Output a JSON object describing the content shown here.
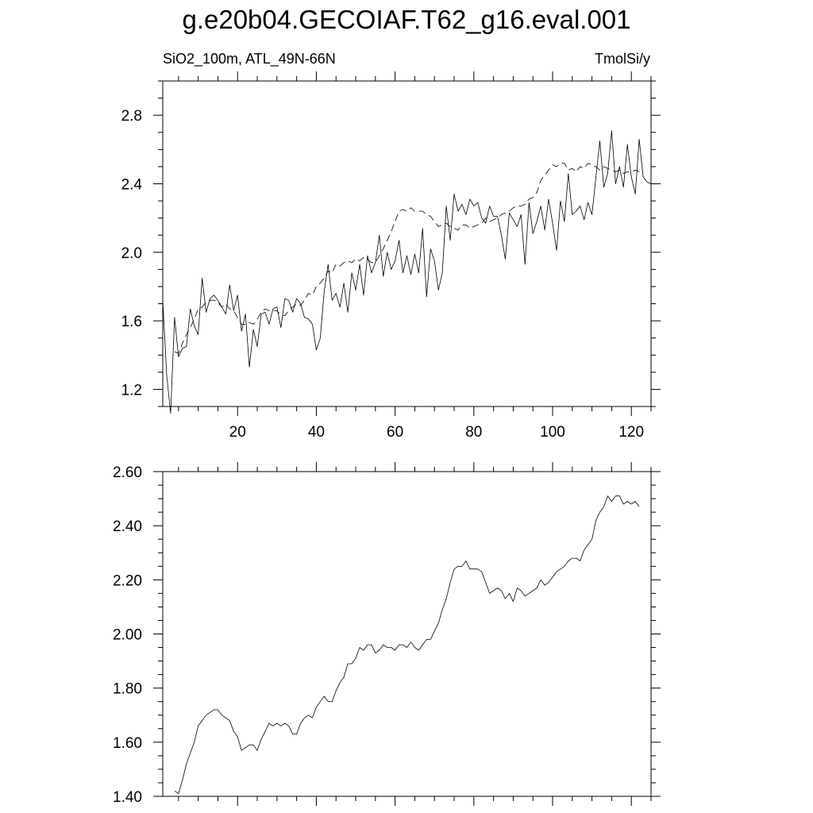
{
  "chart_data": [
    {
      "type": "line",
      "title": "g.e20b04.GECOIAF.T62_g16.eval.001",
      "subtitle_left": "SiO2_100m, ATL_49N-66N",
      "subtitle_right": "TmolSi/y",
      "xlim": [
        1,
        125
      ],
      "ylim": [
        1.1,
        3.0
      ],
      "xticks": [
        20,
        40,
        60,
        80,
        100,
        120
      ],
      "yticks": [
        1.2,
        1.6,
        2.0,
        2.4,
        2.8
      ],
      "ytick_format": "0.0",
      "series": [
        {
          "style": "solid",
          "x": [
            1,
            2,
            3,
            4,
            5,
            6,
            7,
            8,
            9,
            10,
            11,
            12,
            13,
            14,
            15,
            16,
            17,
            18,
            19,
            20,
            21,
            22,
            23,
            24,
            25,
            26,
            27,
            28,
            29,
            30,
            31,
            32,
            33,
            34,
            35,
            36,
            37,
            38,
            39,
            40,
            41,
            42,
            43,
            44,
            45,
            46,
            47,
            48,
            49,
            50,
            51,
            52,
            53,
            54,
            55,
            56,
            57,
            58,
            59,
            60,
            61,
            62,
            63,
            64,
            65,
            66,
            67,
            68,
            69,
            70,
            71,
            72,
            73,
            74,
            75,
            76,
            77,
            78,
            79,
            80,
            81,
            82,
            83,
            84,
            85,
            86,
            87,
            88,
            89,
            90,
            91,
            92,
            93,
            94,
            95,
            96,
            97,
            98,
            99,
            100,
            101,
            102,
            103,
            104,
            105,
            106,
            107,
            108,
            109,
            110,
            111,
            112,
            113,
            114,
            115,
            116,
            117,
            118,
            119,
            120,
            121,
            122,
            123,
            124,
            125
          ],
          "values": [
            1.72,
            1.28,
            1.06,
            1.62,
            1.39,
            1.44,
            1.45,
            1.67,
            1.57,
            1.52,
            1.85,
            1.65,
            1.73,
            1.75,
            1.72,
            1.68,
            1.64,
            1.81,
            1.66,
            1.75,
            1.54,
            1.64,
            1.33,
            1.55,
            1.45,
            1.64,
            1.65,
            1.58,
            1.67,
            1.68,
            1.56,
            1.73,
            1.72,
            1.65,
            1.73,
            1.7,
            1.62,
            1.61,
            1.58,
            1.43,
            1.5,
            1.77,
            1.93,
            1.72,
            1.76,
            1.68,
            1.82,
            1.65,
            1.88,
            1.78,
            1.93,
            1.75,
            1.98,
            1.88,
            1.94,
            2.1,
            1.86,
            2.0,
            1.9,
            1.95,
            2.07,
            1.88,
            1.98,
            1.87,
            1.99,
            1.88,
            2.14,
            1.74,
            2.02,
            1.95,
            1.78,
            1.88,
            2.27,
            2.07,
            2.34,
            2.24,
            2.28,
            2.22,
            2.31,
            2.27,
            2.29,
            2.2,
            2.17,
            2.27,
            2.21,
            2.21,
            2.1,
            1.96,
            2.23,
            2.19,
            2.15,
            2.22,
            1.93,
            2.29,
            2.11,
            2.18,
            2.27,
            2.13,
            2.31,
            2.17,
            2.01,
            2.3,
            2.18,
            2.46,
            2.22,
            2.24,
            2.27,
            2.19,
            2.29,
            2.22,
            2.44,
            2.65,
            2.38,
            2.46,
            2.71,
            2.4,
            2.5,
            2.38,
            2.63,
            2.44,
            2.34,
            2.66,
            2.44,
            2.41,
            2.4
          ]
        },
        {
          "style": "dashed",
          "x": [
            4,
            5,
            6,
            7,
            8,
            9,
            10,
            11,
            12,
            13,
            14,
            15,
            16,
            17,
            18,
            19,
            20,
            21,
            22,
            23,
            24,
            25,
            26,
            27,
            28,
            29,
            30,
            31,
            32,
            33,
            34,
            35,
            36,
            37,
            38,
            39,
            40,
            41,
            42,
            43,
            44,
            45,
            46,
            47,
            48,
            49,
            50,
            51,
            52,
            53,
            54,
            55,
            56,
            57,
            58,
            59,
            60,
            61,
            62,
            63,
            64,
            65,
            66,
            67,
            68,
            69,
            70,
            71,
            72,
            73,
            74,
            75,
            76,
            77,
            78,
            79,
            80,
            81,
            82,
            83,
            84,
            85,
            86,
            87,
            88,
            89,
            90,
            91,
            92,
            93,
            94,
            95,
            96,
            97,
            98,
            99,
            100,
            101,
            102,
            103,
            104,
            105,
            106,
            107,
            108,
            109,
            110,
            111,
            112,
            113,
            114,
            115,
            116,
            117,
            118,
            119,
            120,
            121,
            122
          ],
          "values": [
            1.42,
            1.41,
            1.47,
            1.52,
            1.56,
            1.61,
            1.67,
            1.68,
            1.71,
            1.72,
            1.72,
            1.71,
            1.68,
            1.7,
            1.67,
            1.66,
            1.62,
            1.58,
            1.58,
            1.59,
            1.58,
            1.61,
            1.65,
            1.67,
            1.66,
            1.66,
            1.66,
            1.63,
            1.63,
            1.66,
            1.68,
            1.7,
            1.69,
            1.72,
            1.76,
            1.75,
            1.8,
            1.82,
            1.85,
            1.89,
            1.88,
            1.93,
            1.92,
            1.94,
            1.95,
            1.94,
            1.96,
            1.95,
            1.97,
            1.96,
            1.94,
            1.94,
            1.98,
            2.02,
            2.07,
            2.12,
            2.18,
            2.24,
            2.25,
            2.24,
            2.26,
            2.24,
            2.24,
            2.24,
            2.22,
            2.21,
            2.18,
            2.15,
            2.16,
            2.17,
            2.15,
            2.14,
            2.13,
            2.16,
            2.16,
            2.14,
            2.15,
            2.16,
            2.17,
            2.2,
            2.18,
            2.19,
            2.2,
            2.22,
            2.23,
            2.24,
            2.26,
            2.27,
            2.27,
            2.28,
            2.31,
            2.32,
            2.35,
            2.42,
            2.45,
            2.48,
            2.51,
            2.5,
            2.52,
            2.52,
            2.48,
            2.49,
            2.47,
            2.5,
            2.49,
            2.52,
            2.51,
            2.5,
            2.48,
            2.5,
            2.49,
            2.48,
            2.47,
            2.48,
            2.46,
            2.47,
            2.47,
            2.48,
            2.47
          ]
        }
      ]
    },
    {
      "type": "line",
      "xlim": [
        1,
        125
      ],
      "ylim": [
        1.4,
        2.6
      ],
      "xticks": [
        20,
        40,
        60,
        80,
        100,
        120
      ],
      "yticks": [
        1.4,
        1.6,
        1.8,
        2.0,
        2.2,
        2.4,
        2.6
      ],
      "ytick_format": "0.00",
      "series": [
        {
          "style": "solid",
          "x": [
            4,
            5,
            6,
            7,
            8,
            9,
            10,
            11,
            12,
            13,
            14,
            15,
            16,
            17,
            18,
            19,
            20,
            21,
            22,
            23,
            24,
            25,
            26,
            27,
            28,
            29,
            30,
            31,
            32,
            33,
            34,
            35,
            36,
            37,
            38,
            39,
            40,
            41,
            42,
            43,
            44,
            45,
            46,
            47,
            48,
            49,
            50,
            51,
            52,
            53,
            54,
            55,
            56,
            57,
            58,
            59,
            60,
            61,
            62,
            63,
            64,
            65,
            66,
            67,
            68,
            69,
            70,
            71,
            72,
            73,
            74,
            75,
            76,
            77,
            78,
            79,
            80,
            81,
            82,
            83,
            84,
            85,
            86,
            87,
            88,
            89,
            90,
            91,
            92,
            93,
            94,
            95,
            96,
            97,
            98,
            99,
            100,
            101,
            102,
            103,
            104,
            105,
            106,
            107,
            108,
            109,
            110,
            111,
            112,
            113,
            114,
            115,
            116,
            117,
            118,
            119,
            120,
            121,
            122
          ],
          "values": [
            1.42,
            1.41,
            1.46,
            1.52,
            1.56,
            1.6,
            1.66,
            1.68,
            1.7,
            1.71,
            1.72,
            1.72,
            1.7,
            1.69,
            1.68,
            1.64,
            1.62,
            1.57,
            1.58,
            1.59,
            1.59,
            1.57,
            1.61,
            1.64,
            1.67,
            1.66,
            1.67,
            1.66,
            1.67,
            1.66,
            1.63,
            1.63,
            1.67,
            1.69,
            1.7,
            1.69,
            1.73,
            1.75,
            1.77,
            1.75,
            1.75,
            1.79,
            1.82,
            1.84,
            1.89,
            1.89,
            1.91,
            1.95,
            1.94,
            1.96,
            1.96,
            1.93,
            1.94,
            1.96,
            1.95,
            1.95,
            1.94,
            1.96,
            1.96,
            1.95,
            1.97,
            1.95,
            1.94,
            1.96,
            1.98,
            1.98,
            2.01,
            2.04,
            2.09,
            2.13,
            2.19,
            2.24,
            2.25,
            2.25,
            2.27,
            2.24,
            2.24,
            2.24,
            2.23,
            2.19,
            2.15,
            2.16,
            2.17,
            2.16,
            2.13,
            2.15,
            2.12,
            2.17,
            2.16,
            2.14,
            2.15,
            2.16,
            2.17,
            2.2,
            2.18,
            2.19,
            2.21,
            2.23,
            2.24,
            2.25,
            2.27,
            2.28,
            2.28,
            2.27,
            2.31,
            2.33,
            2.35,
            2.42,
            2.45,
            2.47,
            2.51,
            2.49,
            2.51,
            2.51,
            2.48,
            2.49,
            2.48,
            2.49,
            2.47
          ]
        }
      ]
    }
  ]
}
